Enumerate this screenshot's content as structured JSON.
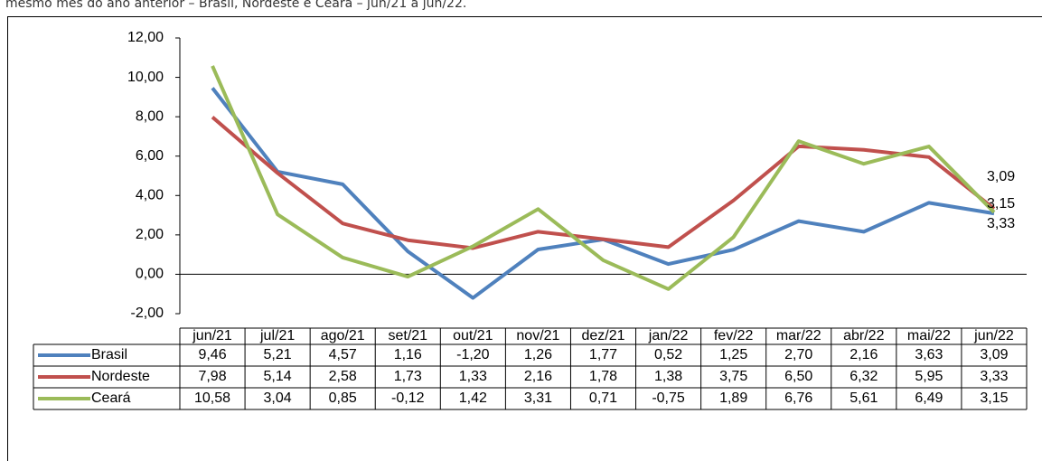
{
  "caption": "mesmo mês do ano anterior – Brasil, Nordeste e Ceará – jun/21 a jun/22.",
  "chart_data": {
    "type": "line",
    "categories": [
      "jun/21",
      "jul/21",
      "ago/21",
      "set/21",
      "out/21",
      "nov/21",
      "dez/21",
      "jan/22",
      "fev/22",
      "mar/22",
      "abr/22",
      "mai/22",
      "jun/22"
    ],
    "series": [
      {
        "name": "Brasil",
        "color": "#4f81bd",
        "values": [
          9.46,
          5.21,
          4.57,
          1.16,
          -1.2,
          1.26,
          1.77,
          0.52,
          1.25,
          2.7,
          2.16,
          3.63,
          3.09
        ],
        "value_labels": [
          "9,46",
          "5,21",
          "4,57",
          "1,16",
          "-1,20",
          "1,26",
          "1,77",
          "0,52",
          "1,25",
          "2,70",
          "2,16",
          "3,63",
          "3,09"
        ]
      },
      {
        "name": "Nordeste",
        "color": "#c0504d",
        "values": [
          7.98,
          5.14,
          2.58,
          1.73,
          1.33,
          2.16,
          1.78,
          1.38,
          3.75,
          6.5,
          6.32,
          5.95,
          3.33
        ],
        "value_labels": [
          "7,98",
          "5,14",
          "2,58",
          "1,73",
          "1,33",
          "2,16",
          "1,78",
          "1,38",
          "3,75",
          "6,50",
          "6,32",
          "5,95",
          "3,33"
        ]
      },
      {
        "name": "Ceará",
        "color": "#9bbb59",
        "values": [
          10.58,
          3.04,
          0.85,
          -0.12,
          1.42,
          3.31,
          0.71,
          -0.75,
          1.89,
          6.76,
          5.61,
          6.49,
          3.15
        ],
        "value_labels": [
          "10,58",
          "3,04",
          "0,85",
          "-0,12",
          "1,42",
          "3,31",
          "0,71",
          "-0,75",
          "1,89",
          "6,76",
          "5,61",
          "6,49",
          "3,15"
        ]
      }
    ],
    "ylim": [
      -2,
      12
    ],
    "yticks": [
      {
        "value": -2,
        "label": "-2,00"
      },
      {
        "value": 0,
        "label": "0,00"
      },
      {
        "value": 2,
        "label": "2,00"
      },
      {
        "value": 4,
        "label": "4,00"
      },
      {
        "value": 6,
        "label": "6,00"
      },
      {
        "value": 8,
        "label": "8,00"
      },
      {
        "value": 10,
        "label": "10,00"
      },
      {
        "value": 12,
        "label": "12,00"
      }
    ],
    "grid": false
  }
}
